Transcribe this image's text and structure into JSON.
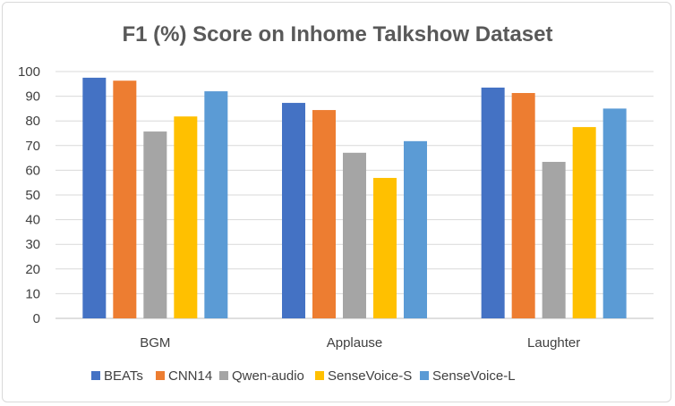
{
  "chart_data": {
    "type": "bar",
    "title": "F1 (%) Score on Inhome Talkshow Dataset",
    "categories": [
      "BGM",
      "Applause",
      "Laughter"
    ],
    "series": [
      {
        "name": "BEATs",
        "color": "#4472C4",
        "values": [
          97.5,
          87.3,
          93.5
        ]
      },
      {
        "name": "CNN14",
        "color": "#ED7D31",
        "values": [
          96.3,
          84.4,
          91.3
        ]
      },
      {
        "name": "Qwen-audio",
        "color": "#A5A5A5",
        "values": [
          75.7,
          67.1,
          63.4
        ]
      },
      {
        "name": "SenseVoice-S",
        "color": "#FFC000",
        "values": [
          81.8,
          56.9,
          77.5
        ]
      },
      {
        "name": "SenseVoice-L",
        "color": "#5B9BD5",
        "values": [
          92.0,
          71.8,
          85.0
        ]
      }
    ],
    "ylim": [
      0,
      100
    ],
    "yticks": [
      0,
      10,
      20,
      30,
      40,
      50,
      60,
      70,
      80,
      90,
      100
    ],
    "grid": true,
    "legend": "bottom"
  }
}
